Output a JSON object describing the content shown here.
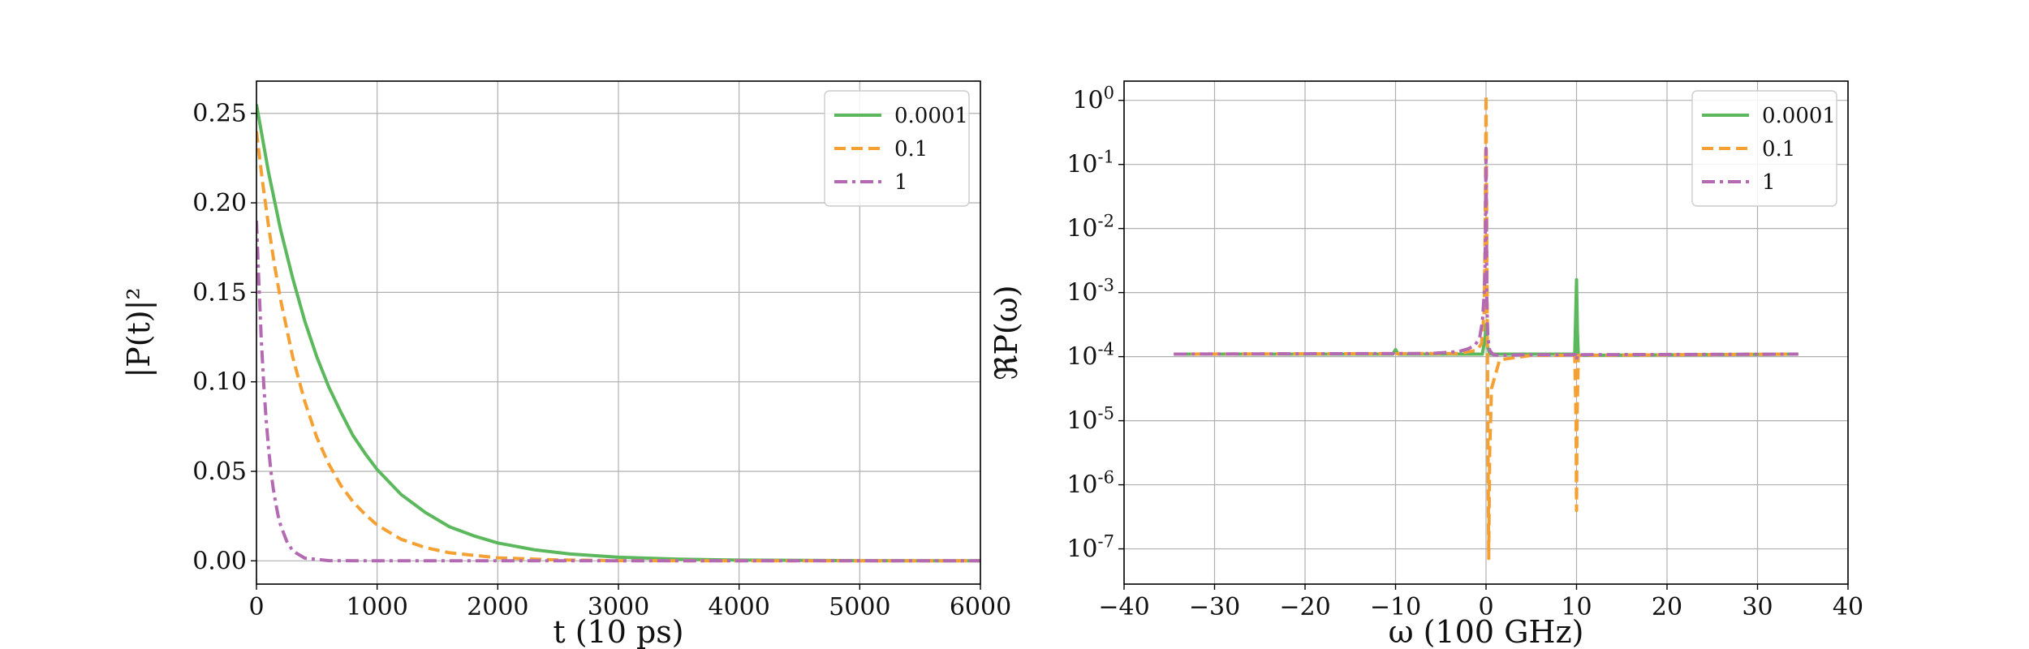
{
  "chart_data": [
    {
      "type": "line",
      "xlabel": "t (10 ps)",
      "ylabel": "|P(t)|²",
      "xlim": [
        0,
        6000
      ],
      "ylim": [
        -0.013,
        0.268
      ],
      "xticks": [
        0,
        1000,
        2000,
        3000,
        4000,
        5000,
        6000
      ],
      "xtick_labels": [
        "0",
        "1000",
        "2000",
        "3000",
        "4000",
        "5000",
        "6000"
      ],
      "yticks": [
        0,
        0.05,
        0.1,
        0.15,
        0.2,
        0.25
      ],
      "ytick_labels": [
        "0.00",
        "0.05",
        "0.10",
        "0.15",
        "0.20",
        "0.25"
      ],
      "grid": true,
      "legend": "top-right",
      "series": [
        {
          "name": "0.0001",
          "color": "#5cb85c",
          "style": "solid",
          "x": [
            0,
            100,
            200,
            300,
            400,
            500,
            600,
            700,
            800,
            900,
            1000,
            1200,
            1400,
            1600,
            1800,
            2000,
            2300,
            2600,
            3000,
            3500,
            4000,
            5000,
            6000
          ],
          "y": [
            0.255,
            0.217,
            0.185,
            0.158,
            0.134,
            0.114,
            0.097,
            0.083,
            0.07,
            0.06,
            0.051,
            0.037,
            0.027,
            0.019,
            0.014,
            0.01,
            0.0062,
            0.0038,
            0.002,
            0.0009,
            0.0004,
            0.0001,
            0.0
          ]
        },
        {
          "name": "0.1",
          "color": "#f5a033",
          "style": "dashed",
          "x": [
            0,
            50,
            100,
            150,
            200,
            300,
            400,
            500,
            600,
            700,
            800,
            900,
            1000,
            1200,
            1400,
            1600,
            2000,
            2500,
            3000,
            4000,
            6000
          ],
          "y": [
            0.24,
            0.212,
            0.187,
            0.165,
            0.146,
            0.114,
            0.089,
            0.069,
            0.054,
            0.042,
            0.033,
            0.026,
            0.02,
            0.012,
            0.0074,
            0.0045,
            0.0017,
            0.0005,
            0.0001,
            0.0,
            0.0
          ]
        },
        {
          "name": "1",
          "color": "#b36ab3",
          "style": "dashdot",
          "x": [
            0,
            20,
            40,
            60,
            80,
            100,
            120,
            140,
            160,
            180,
            200,
            250,
            300,
            400,
            600,
            1000,
            6000
          ],
          "y": [
            0.19,
            0.155,
            0.124,
            0.099,
            0.079,
            0.063,
            0.05,
            0.04,
            0.032,
            0.025,
            0.02,
            0.011,
            0.0056,
            0.0015,
            0.0001,
            0.0,
            0.0
          ]
        }
      ]
    },
    {
      "type": "line",
      "xlabel": "ω (100 GHz)",
      "ylabel": "ℜP(ω)",
      "xlim": [
        -40,
        40
      ],
      "ylim_log10": [
        -7.55,
        0.3
      ],
      "yscale": "log",
      "xticks": [
        -40,
        -30,
        -20,
        -10,
        0,
        10,
        20,
        30,
        40
      ],
      "xtick_labels": [
        "−40",
        "−30",
        "−20",
        "−10",
        "0",
        "10",
        "20",
        "30",
        "40"
      ],
      "yticks_log10": [
        0,
        -1,
        -2,
        -3,
        -4,
        -5,
        -6,
        -7
      ],
      "ytick_bases": [
        "10",
        "10",
        "10",
        "10",
        "10",
        "10",
        "10",
        "10"
      ],
      "ytick_exps": [
        "0",
        "-1",
        "-2",
        "-3",
        "-4",
        "-5",
        "-6",
        "-7"
      ],
      "grid": true,
      "legend": "top-right",
      "series": [
        {
          "name": "0.0001",
          "color": "#5cb85c",
          "style": "solid",
          "x": [
            -34.5,
            -10.3,
            -10,
            -9.7,
            -0.4,
            -0.1,
            0,
            0.1,
            0.4,
            9.8,
            9.9,
            10,
            10.1,
            10.2,
            34.5
          ],
          "y_log10": [
            -3.96,
            -3.96,
            -3.89,
            -3.96,
            -3.96,
            -3.7,
            -3.5,
            -3.8,
            -3.96,
            -3.96,
            -3.4,
            -2.8,
            -3.6,
            -3.98,
            -3.96
          ]
        },
        {
          "name": "0.1",
          "color": "#f5a033",
          "style": "dashed",
          "x": [
            -34.5,
            -3,
            -1,
            -0.5,
            -0.2,
            -0.1,
            0,
            0.1,
            0.2,
            0.3,
            0.4,
            0.6,
            1.5,
            5,
            9.8,
            9.95,
            10,
            10.05,
            10.2,
            34.5
          ],
          "y_log10": [
            -3.96,
            -3.95,
            -3.9,
            -3.8,
            -3.3,
            -2.0,
            0.08,
            -2.5,
            -5.0,
            -7.15,
            -5.5,
            -4.5,
            -4.05,
            -3.98,
            -3.98,
            -5.0,
            -6.4,
            -5.0,
            -3.98,
            -3.96
          ]
        },
        {
          "name": "1",
          "color": "#b36ab3",
          "style": "dashdot",
          "x": [
            -34.5,
            -6,
            -3,
            -2,
            -1.2,
            -0.7,
            -0.4,
            -0.2,
            -0.1,
            0,
            0.1,
            0.2,
            0.4,
            0.8,
            1.5,
            4,
            9.9,
            10,
            10.1,
            34.5
          ],
          "y_log10": [
            -3.96,
            -3.95,
            -3.92,
            -3.88,
            -3.82,
            -3.7,
            -3.45,
            -3.0,
            -2.5,
            -0.75,
            -3.2,
            -3.7,
            -3.9,
            -3.97,
            -3.98,
            -3.97,
            -3.97,
            -4.05,
            -3.97,
            -3.96
          ]
        }
      ]
    }
  ]
}
